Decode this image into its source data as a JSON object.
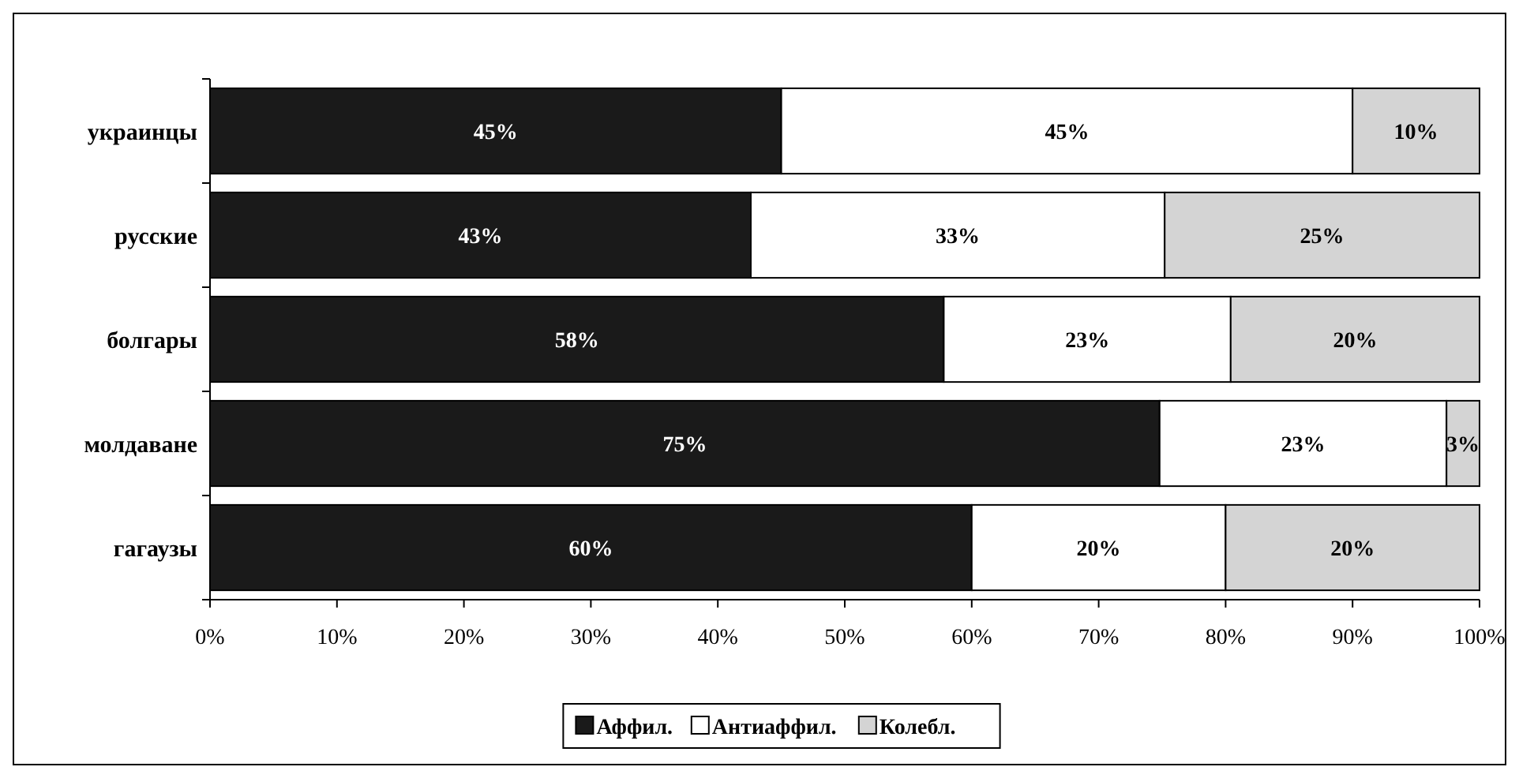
{
  "chart_data": {
    "type": "bar",
    "orientation": "horizontal",
    "stacked": true,
    "categories": [
      "украинцы",
      "русские",
      "болгары",
      "молдаване",
      "гагаузы"
    ],
    "series": [
      {
        "name": "Аффил.",
        "color": "#1a1a1a",
        "values": [
          45,
          42.6,
          57.8,
          74.8,
          60
        ],
        "value_labels": [
          "45%",
          "43%",
          "58%",
          "75%",
          "60%"
        ]
      },
      {
        "name": "Антиаффил.",
        "color": "#ffffff",
        "values": [
          45,
          32.6,
          22.6,
          22.6,
          20
        ],
        "value_labels": [
          "45%",
          "33%",
          "23%",
          "23%",
          "20%"
        ]
      },
      {
        "name": "Колебл.",
        "color": "#d4d4d4",
        "values": [
          10,
          24.8,
          19.6,
          2.6,
          20
        ],
        "value_labels": [
          "10%",
          "25%",
          "20%",
          "3%",
          "20%"
        ]
      }
    ],
    "xlim": [
      0,
      100
    ],
    "xticks": [
      {
        "value": 0,
        "label": "0%"
      },
      {
        "value": 10,
        "label": "10%"
      },
      {
        "value": 20,
        "label": "20%"
      },
      {
        "value": 30,
        "label": "30%"
      },
      {
        "value": 40,
        "label": "40%"
      },
      {
        "value": 50,
        "label": "50%"
      },
      {
        "value": 60,
        "label": "60%"
      },
      {
        "value": 70,
        "label": "70%"
      },
      {
        "value": 80,
        "label": "80%"
      },
      {
        "value": 90,
        "label": "90%"
      },
      {
        "value": 100,
        "label": "100%"
      }
    ],
    "grid": false,
    "legend": "bottom"
  }
}
